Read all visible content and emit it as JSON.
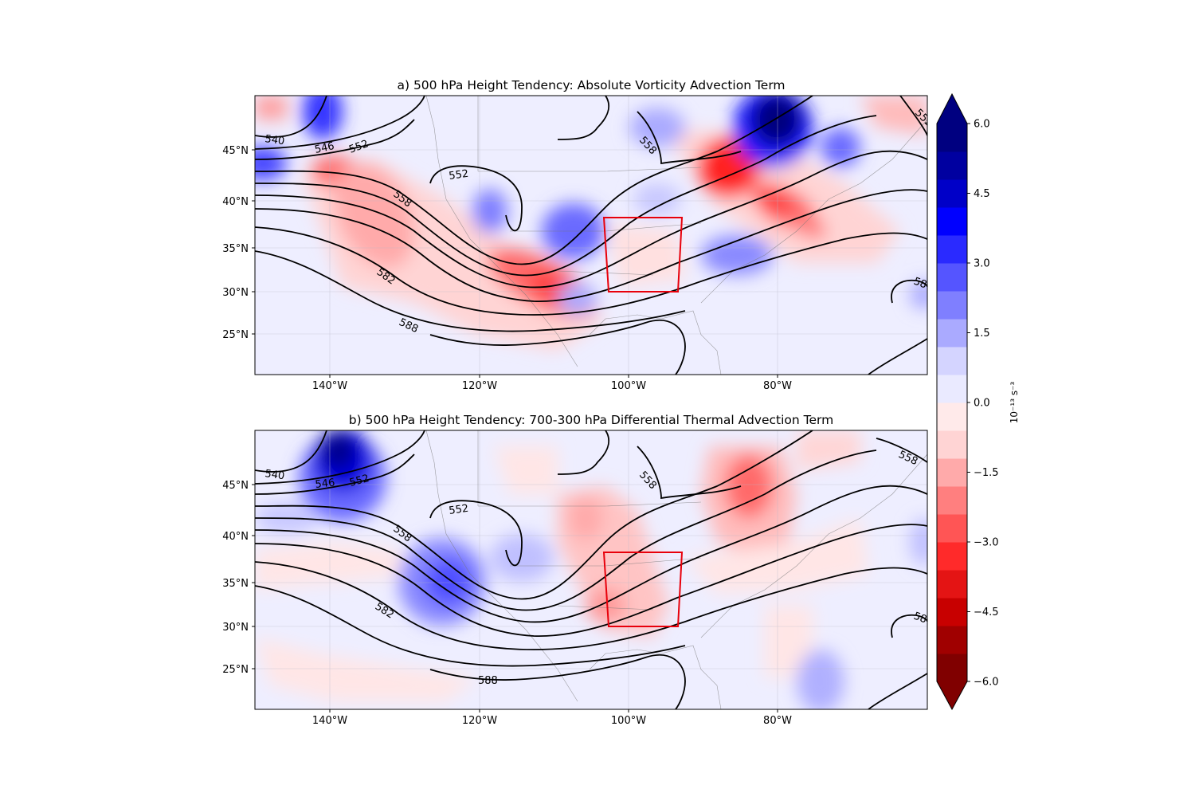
{
  "figure": {
    "panels": [
      {
        "title": "a) 500 hPa Height Tendency: Absolute Vorticity Advection Term",
        "lat_ticks": [
          "45°N",
          "40°N",
          "35°N",
          "30°N",
          "25°N"
        ],
        "lon_ticks": [
          "140°W",
          "120°W",
          "100°W",
          "80°W"
        ],
        "contour_labels": [
          "540",
          "546",
          "552",
          "552",
          "558",
          "558",
          "582",
          "588",
          "552",
          "58"
        ]
      },
      {
        "title": "b) 500 hPa Height Tendency: 700-300 hPa Differential Thermal Advection Term",
        "lat_ticks": [
          "45°N",
          "40°N",
          "35°N",
          "30°N",
          "25°N"
        ],
        "lon_ticks": [
          "140°W",
          "120°W",
          "100°W",
          "80°W"
        ],
        "contour_labels": [
          "540",
          "546",
          "552",
          "552",
          "558",
          "558",
          "582",
          "588",
          "558",
          "58"
        ]
      }
    ],
    "colorbar": {
      "tick_labels": [
        "6.0",
        "4.5",
        "3.0",
        "1.5",
        "0.0",
        "−1.5",
        "−3.0",
        "−4.5",
        "−6.0"
      ],
      "unit_label": "10⁻¹³ s⁻³",
      "colors": [
        "#800000",
        "#a00000",
        "#c80000",
        "#e41414",
        "#ff2a2a",
        "#ff5555",
        "#ff7f7f",
        "#ffaaaa",
        "#ffd4d4",
        "#ffeaea",
        "#eaeaff",
        "#d4d4ff",
        "#aaaaff",
        "#7f7fff",
        "#5555ff",
        "#2a2aff",
        "#0000ff",
        "#0000c8",
        "#0000a0",
        "#000080"
      ]
    },
    "box_color": "#e8000b"
  }
}
